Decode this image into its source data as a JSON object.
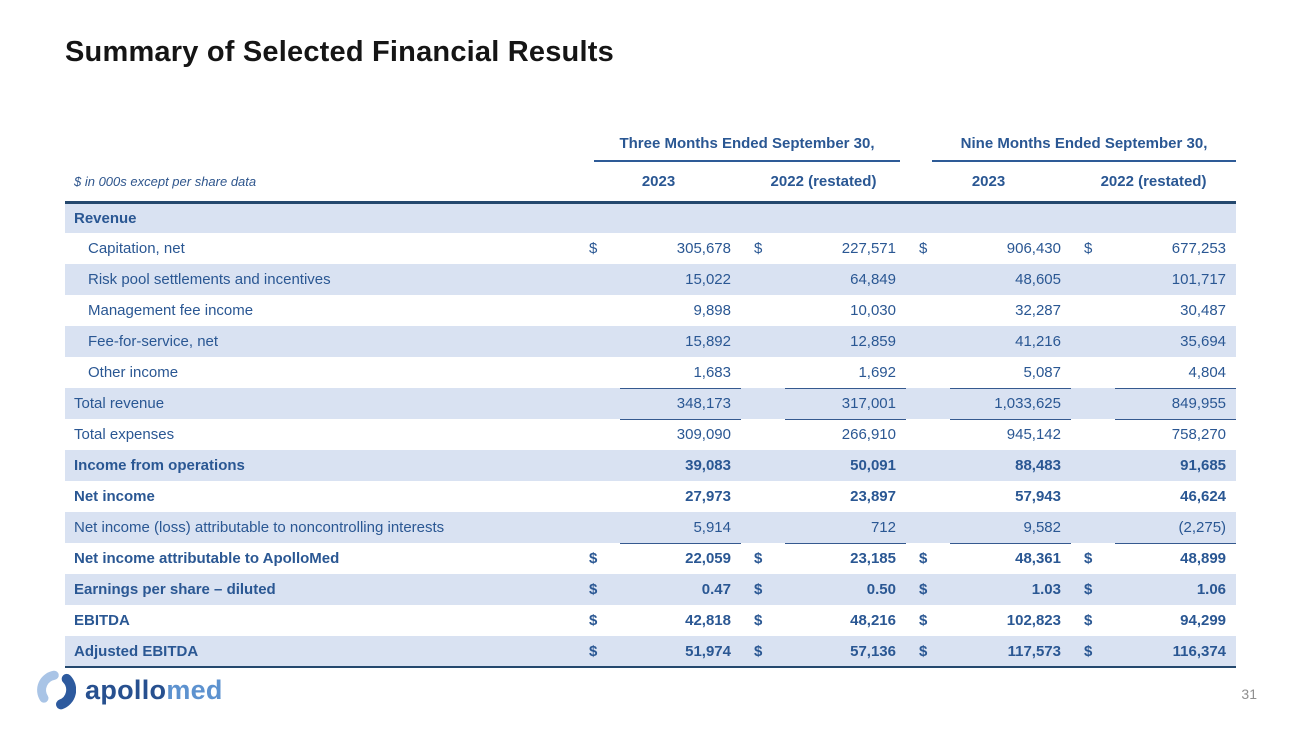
{
  "slide": {
    "title": "Summary of Selected Financial Results",
    "page_number": "31"
  },
  "logo": {
    "brand_part_1": "apollo",
    "brand_part_2": "med"
  },
  "colors": {
    "table_text_blue": "#2a5793",
    "row_band_blue": "#d9e2f2",
    "heavy_rule_navy": "#24486e",
    "thin_rule_blue": "#35598f",
    "logo_dark_blue": "#27508f",
    "logo_light_blue": "#5d92cf",
    "title_black": "#151515",
    "page_number_gray": "#8f8f8f"
  },
  "table": {
    "note": "$ in 000s except per share data",
    "period_headers": [
      "Three Months Ended September 30,",
      "Nine Months Ended September 30,"
    ],
    "year_headers": [
      "2023",
      "2022 (restated)",
      "2023",
      "2022 (restated)"
    ],
    "rows": [
      {
        "label": "Revenue",
        "currency": "",
        "values": [
          "",
          "",
          "",
          ""
        ],
        "band": true,
        "bold": true,
        "indent": false,
        "underline": false,
        "last": false
      },
      {
        "label": "Capitation, net",
        "currency": "$",
        "values": [
          "305,678",
          "227,571",
          "906,430",
          "677,253"
        ],
        "band": false,
        "bold": false,
        "indent": true,
        "underline": false,
        "last": false
      },
      {
        "label": "Risk pool settlements and incentives",
        "currency": "",
        "values": [
          "15,022",
          "64,849",
          "48,605",
          "101,717"
        ],
        "band": true,
        "bold": false,
        "indent": true,
        "underline": false,
        "last": false
      },
      {
        "label": "Management fee income",
        "currency": "",
        "values": [
          "9,898",
          "10,030",
          "32,287",
          "30,487"
        ],
        "band": false,
        "bold": false,
        "indent": true,
        "underline": false,
        "last": false
      },
      {
        "label": "Fee-for-service, net",
        "currency": "",
        "values": [
          "15,892",
          "12,859",
          "41,216",
          "35,694"
        ],
        "band": true,
        "bold": false,
        "indent": true,
        "underline": false,
        "last": false
      },
      {
        "label": "Other income",
        "currency": "",
        "values": [
          "1,683",
          "1,692",
          "5,087",
          "4,804"
        ],
        "band": false,
        "bold": false,
        "indent": true,
        "underline": true,
        "last": false
      },
      {
        "label": "Total revenue",
        "currency": "",
        "values": [
          "348,173",
          "317,001",
          "1,033,625",
          "849,955"
        ],
        "band": true,
        "bold": false,
        "indent": false,
        "underline": true,
        "last": false
      },
      {
        "label": "Total expenses",
        "currency": "",
        "values": [
          "309,090",
          "266,910",
          "945,142",
          "758,270"
        ],
        "band": false,
        "bold": false,
        "indent": false,
        "underline": false,
        "last": false
      },
      {
        "label": "Income from operations",
        "currency": "",
        "values": [
          "39,083",
          "50,091",
          "88,483",
          "91,685"
        ],
        "band": true,
        "bold": true,
        "indent": false,
        "underline": false,
        "last": false
      },
      {
        "label": "Net income",
        "currency": "",
        "values": [
          "27,973",
          "23,897",
          "57,943",
          "46,624"
        ],
        "band": false,
        "bold": true,
        "indent": false,
        "underline": false,
        "last": false
      },
      {
        "label": "Net income (loss) attributable to noncontrolling interests",
        "currency": "",
        "values": [
          "5,914",
          "712",
          "9,582",
          "(2,275)"
        ],
        "band": true,
        "bold": false,
        "indent": false,
        "underline": true,
        "last": false
      },
      {
        "label": "Net income attributable to ApolloMed",
        "currency": "$",
        "values": [
          "22,059",
          "23,185",
          "48,361",
          "48,899"
        ],
        "band": false,
        "bold": true,
        "indent": false,
        "underline": false,
        "last": false
      },
      {
        "label": "Earnings per share – diluted",
        "currency": "$",
        "values": [
          "0.47",
          "0.50",
          "1.03",
          "1.06"
        ],
        "band": true,
        "bold": true,
        "indent": false,
        "underline": false,
        "last": false
      },
      {
        "label": "EBITDA",
        "currency": "$",
        "values": [
          "42,818",
          "48,216",
          "102,823",
          "94,299"
        ],
        "band": false,
        "bold": true,
        "indent": false,
        "underline": false,
        "last": false
      },
      {
        "label": "Adjusted EBITDA",
        "currency": "$",
        "values": [
          "51,974",
          "57,136",
          "117,573",
          "116,374"
        ],
        "band": true,
        "bold": true,
        "indent": false,
        "underline": false,
        "last": true
      }
    ]
  }
}
